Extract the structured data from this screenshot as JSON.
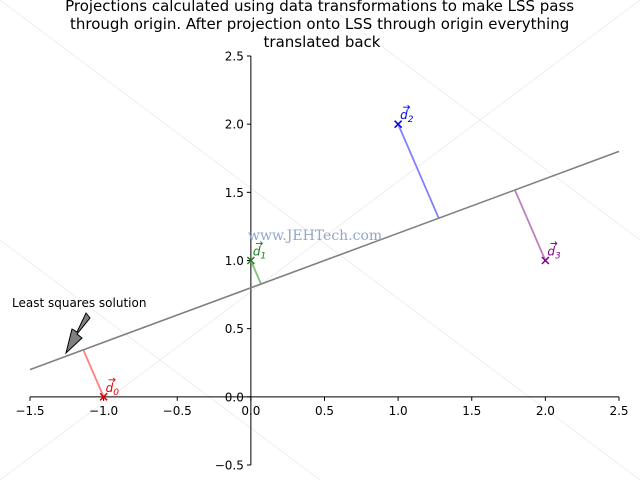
{
  "chart_data": {
    "type": "line",
    "title_lines": [
      "Projections calculated using data transformations to make LSS pass",
      "through origin. After projection onto LSS through origin everything",
      "translated back"
    ],
    "xlabel": "",
    "ylabel": "",
    "xlim": [
      -1.5,
      2.5
    ],
    "ylim": [
      -0.5,
      2.5
    ],
    "x_ticks": [
      -1.5,
      -1.0,
      -0.5,
      0.0,
      0.5,
      1.0,
      1.5,
      2.0,
      2.5
    ],
    "x_tick_labels": [
      "−1.5",
      "−1.0",
      "−0.5",
      "0.0",
      "0.5",
      "1.0",
      "1.5",
      "2.0",
      "2.5"
    ],
    "y_ticks": [
      -0.5,
      0.0,
      0.5,
      1.0,
      1.5,
      2.0,
      2.5
    ],
    "y_tick_labels": [
      "−0.5",
      "0.0",
      "0.5",
      "1.0",
      "1.5",
      "2.0",
      "2.5"
    ],
    "grid": false,
    "line": {
      "slope": 0.4,
      "intercept": 0.8,
      "color": "#808080"
    },
    "points": [
      {
        "label": "d0",
        "x": -1.0,
        "y": 0.0,
        "marker": "x",
        "color": "#e8000b",
        "proj_color": "#ff8080"
      },
      {
        "label": "d1",
        "x": 0.0,
        "y": 1.0,
        "marker": "x",
        "color": "#1a7f1a",
        "proj_color": "#80c080"
      },
      {
        "label": "d2",
        "x": 1.0,
        "y": 2.0,
        "marker": "x",
        "color": "#0000ee",
        "proj_color": "#8080ff"
      },
      {
        "label": "d3",
        "x": 2.0,
        "y": 1.0,
        "marker": "x",
        "color": "#7f007f",
        "proj_color": "#bf80bf"
      }
    ],
    "annotation": {
      "text": "Least squares solution"
    },
    "watermark": "www.JEHTech.com"
  }
}
